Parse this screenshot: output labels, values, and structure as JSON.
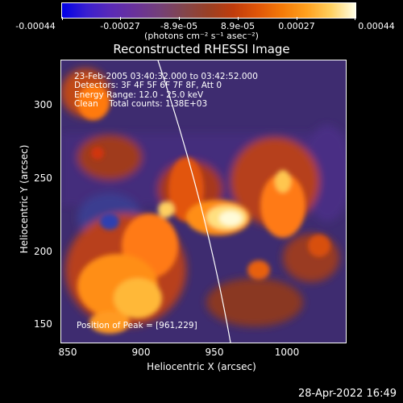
{
  "colorbar": {
    "ticks": [
      "-0.00044",
      "-0.00027",
      "-8.9e-05",
      "8.9e-05",
      "0.00027",
      "0.00044"
    ],
    "units": "(photons cm⁻² s⁻¹ asec⁻²)"
  },
  "title": "Reconstructed RHESSI Image",
  "info": {
    "line1": "23-Feb-2005 03:40:32.000 to 03:42:52.000",
    "line2": "Detectors: 3F 4F 5F 6F 7F 8F, Att 0",
    "line3": "Energy Range: 12.0 - 25.0 keV",
    "line4": "Clean    Total counts: 1.38E+03"
  },
  "peak": "Position of Peak = [961,229]",
  "axes": {
    "x_label": "Heliocentric X (arcsec)",
    "y_label": "Heliocentric Y (arcsec)",
    "x_ticks": [
      "850",
      "900",
      "950",
      "1000"
    ],
    "y_ticks": [
      "300",
      "250",
      "200",
      "150"
    ]
  },
  "timestamp": "28-Apr-2022 16:49",
  "colors": {
    "background": "#000000",
    "foreground": "#ffffff"
  }
}
